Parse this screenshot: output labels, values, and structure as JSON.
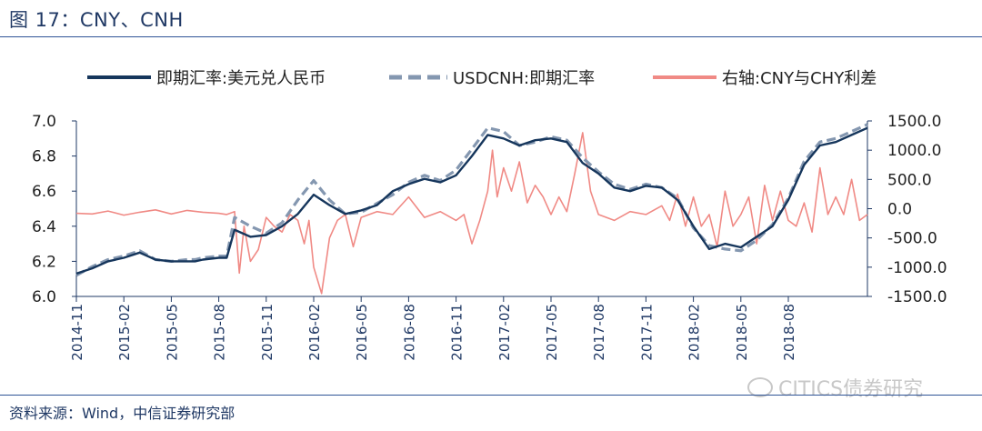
{
  "figure_title": "图 17：CNY、CNH",
  "source_note": "资料来源：Wind，中信证券研究部",
  "watermark_text": "CITICS债券研究",
  "colors": {
    "cny": "#16365c",
    "cnh": "#8497b0",
    "spread": "#f08a85",
    "axis": "#1f3864"
  },
  "chart_data": {
    "type": "line",
    "legend_position": "top",
    "grid": false,
    "x_tick_labels": [
      "2014-11",
      "2015-02",
      "2015-05",
      "2015-08",
      "2015-11",
      "2016-02",
      "2016-05",
      "2016-08",
      "2016-11",
      "2017-02",
      "2017-05",
      "2017-08",
      "2017-11",
      "2018-02",
      "2018-05",
      "2018-08"
    ],
    "ylim_left": [
      6.0,
      7.0
    ],
    "y_ticks_left": [
      "6.0",
      "6.2",
      "6.4",
      "6.6",
      "6.8",
      "7.0"
    ],
    "ylim_right": [
      -1500,
      1500
    ],
    "y_ticks_right": [
      "-1500.0",
      "-1000.0",
      "-500.0",
      "0.0",
      "500.0",
      "1000.0",
      "1500.0"
    ],
    "x_range_months": [
      0,
      50
    ],
    "series": [
      {
        "name": "即期汇率:美元兑人民币",
        "axis": "left",
        "style": "solid",
        "color": "#16365c",
        "x": [
          0,
          1,
          2,
          3,
          4,
          5,
          6,
          7,
          7.5,
          8,
          9,
          9.5,
          10,
          11,
          12,
          13,
          14,
          15,
          16,
          17,
          18,
          19,
          20,
          21,
          22,
          23,
          24,
          25,
          26,
          27,
          28,
          29,
          30,
          31,
          32,
          33,
          34,
          35,
          36,
          37,
          38,
          39,
          40,
          41,
          42,
          43,
          44,
          45,
          46,
          47,
          48,
          49,
          50
        ],
        "y": [
          6.13,
          6.16,
          6.2,
          6.22,
          6.25,
          6.21,
          6.2,
          6.2,
          6.2,
          6.21,
          6.22,
          6.22,
          6.38,
          6.34,
          6.35,
          6.4,
          6.47,
          6.58,
          6.52,
          6.47,
          6.49,
          6.52,
          6.6,
          6.64,
          6.67,
          6.65,
          6.69,
          6.8,
          6.92,
          6.9,
          6.86,
          6.89,
          6.9,
          6.88,
          6.76,
          6.7,
          6.62,
          6.6,
          6.63,
          6.62,
          6.55,
          6.4,
          6.27,
          6.3,
          6.28,
          6.34,
          6.4,
          6.55,
          6.75,
          6.86,
          6.88,
          6.92,
          6.96
        ]
      },
      {
        "name": "USDCNH:即期汇率",
        "axis": "left",
        "style": "dashed",
        "color": "#8497b0",
        "x": [
          0,
          1,
          2,
          3,
          4,
          5,
          6,
          7,
          7.5,
          8,
          9,
          9.5,
          10,
          11,
          12,
          13,
          14,
          15,
          16,
          17,
          18,
          19,
          20,
          21,
          22,
          23,
          24,
          25,
          26,
          27,
          28,
          29,
          30,
          31,
          32,
          33,
          34,
          35,
          36,
          37,
          38,
          39,
          40,
          41,
          42,
          43,
          44,
          45,
          46,
          47,
          48,
          49,
          50
        ],
        "y": [
          6.12,
          6.17,
          6.21,
          6.23,
          6.26,
          6.21,
          6.2,
          6.21,
          6.21,
          6.22,
          6.23,
          6.23,
          6.45,
          6.4,
          6.36,
          6.42,
          6.55,
          6.66,
          6.55,
          6.47,
          6.48,
          6.53,
          6.58,
          6.65,
          6.69,
          6.66,
          6.72,
          6.84,
          6.96,
          6.94,
          6.86,
          6.88,
          6.91,
          6.89,
          6.79,
          6.71,
          6.64,
          6.61,
          6.64,
          6.62,
          6.56,
          6.39,
          6.29,
          6.27,
          6.26,
          6.32,
          6.41,
          6.56,
          6.77,
          6.88,
          6.9,
          6.94,
          6.98
        ]
      },
      {
        "name": "右轴:CNY与CHY利差",
        "axis": "right",
        "style": "solid",
        "color": "#f08a85",
        "x": [
          0,
          1,
          2,
          3,
          4,
          5,
          6,
          7,
          8,
          9,
          9.5,
          10,
          10.3,
          10.6,
          11,
          11.5,
          12,
          12.5,
          13,
          13.5,
          14,
          14.4,
          14.7,
          15,
          15.5,
          16,
          16.5,
          17,
          17.5,
          18,
          19,
          20,
          21,
          22,
          23,
          24,
          24.5,
          25,
          25.5,
          26,
          26.3,
          26.6,
          27,
          27.5,
          28,
          28.5,
          29,
          29.5,
          30,
          30.5,
          31,
          31.5,
          32,
          32.5,
          33,
          34,
          35,
          36,
          37,
          37.5,
          38,
          38.5,
          39,
          39.5,
          40,
          40.5,
          41,
          41.5,
          42,
          42.5,
          43,
          43.5,
          44,
          44.5,
          45,
          45.5,
          46,
          46.5,
          47,
          47.5,
          48,
          48.5,
          49,
          49.5,
          50
        ],
        "y": [
          -80,
          -90,
          -40,
          -110,
          -60,
          -20,
          -90,
          -30,
          -60,
          -80,
          -100,
          -50,
          -1100,
          -300,
          -900,
          -700,
          -150,
          -300,
          -400,
          -100,
          -200,
          -600,
          -200,
          -1000,
          -1450,
          -500,
          -200,
          -100,
          -650,
          -150,
          -50,
          -100,
          200,
          -150,
          -50,
          -200,
          -100,
          -600,
          -200,
          300,
          1000,
          200,
          700,
          300,
          800,
          100,
          400,
          200,
          -100,
          200,
          -50,
          600,
          1300,
          300,
          -100,
          -200,
          -50,
          -100,
          50,
          -200,
          250,
          -300,
          200,
          -300,
          -100,
          -650,
          300,
          -300,
          -100,
          200,
          -600,
          400,
          -200,
          300,
          -200,
          -300,
          100,
          -400,
          700,
          -100,
          200,
          -100,
          500,
          -200,
          -100
        ]
      }
    ]
  }
}
